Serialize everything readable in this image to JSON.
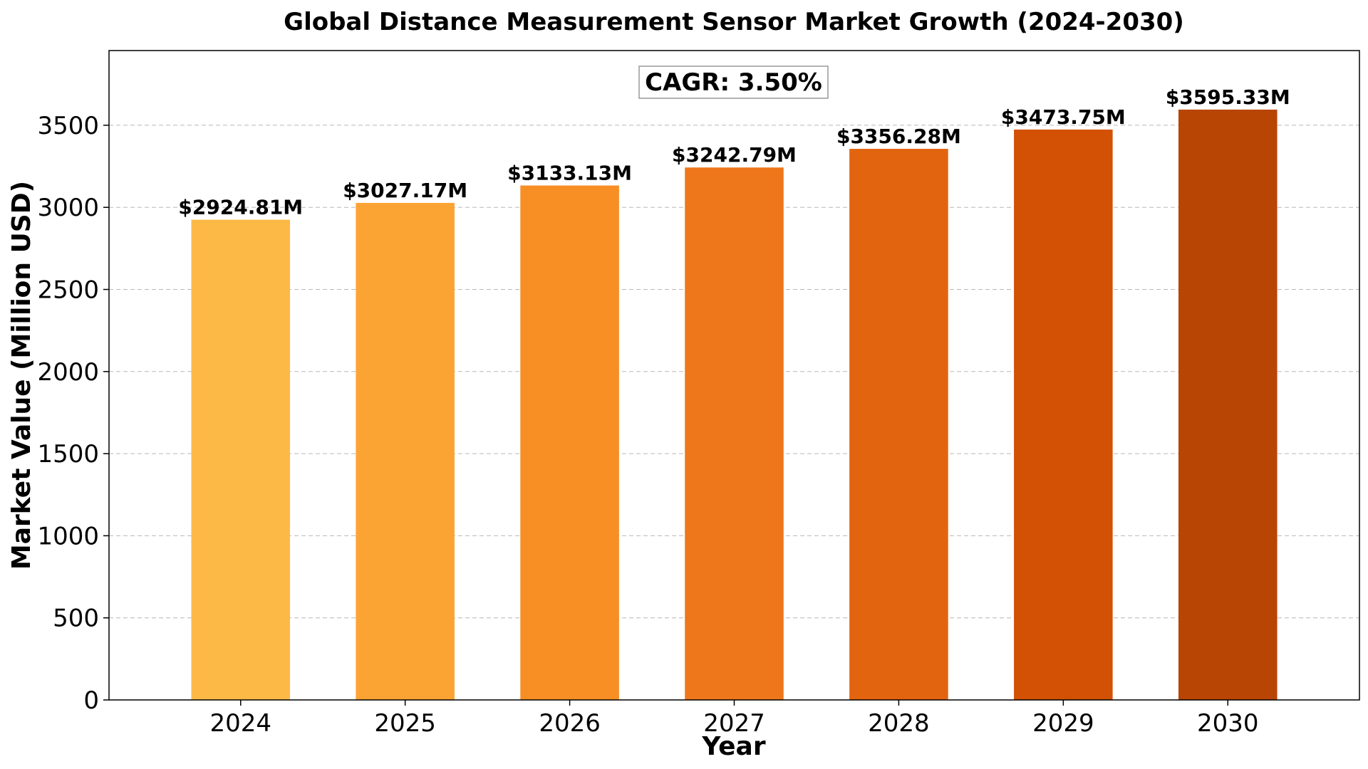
{
  "chart_data": {
    "type": "bar",
    "title": "Global Distance Measurement Sensor Market Growth (2024-2030)",
    "xlabel": "Year",
    "ylabel": "Market Value (Million USD)",
    "categories": [
      "2024",
      "2025",
      "2026",
      "2027",
      "2028",
      "2029",
      "2030"
    ],
    "values": [
      2924.81,
      3027.17,
      3133.13,
      3242.79,
      3356.28,
      3473.75,
      3595.33
    ],
    "data_labels": [
      "$2924.81M",
      "$3027.17M",
      "$3133.13M",
      "$3242.79M",
      "$3356.28M",
      "$3473.75M",
      "$3595.33M"
    ],
    "colors": [
      "#fdb946",
      "#fca433",
      "#f78f24",
      "#ee771b",
      "#e2640f",
      "#d25105",
      "#b84504"
    ],
    "ylim": [
      0,
      3955
    ],
    "yticks": [
      0,
      500,
      1000,
      1500,
      2000,
      2500,
      3000,
      3500
    ],
    "ytick_labels": [
      "0",
      "500",
      "1000",
      "1500",
      "2000",
      "2500",
      "3000",
      "3500"
    ],
    "grid": "y, dashed",
    "annotation": "CAGR: 3.50%"
  }
}
